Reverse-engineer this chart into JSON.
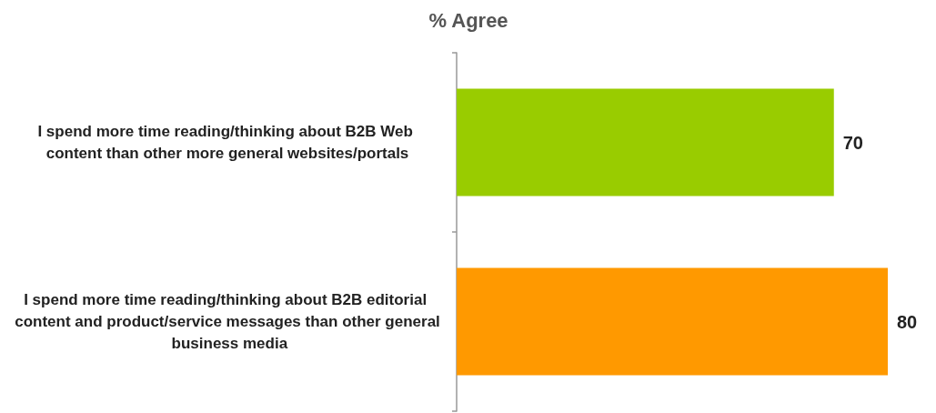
{
  "chart_data": {
    "type": "bar",
    "orientation": "horizontal",
    "title": "% Agree",
    "categories": [
      "I spend more time reading/thinking about B2B Web content than other more general websites/portals",
      "I spend more time reading/thinking about B2B editorial content and product/service messages than other general business media"
    ],
    "values": [
      70,
      80
    ],
    "colors": [
      "#99cc00",
      "#ff9900"
    ],
    "data_labels": true
  }
}
